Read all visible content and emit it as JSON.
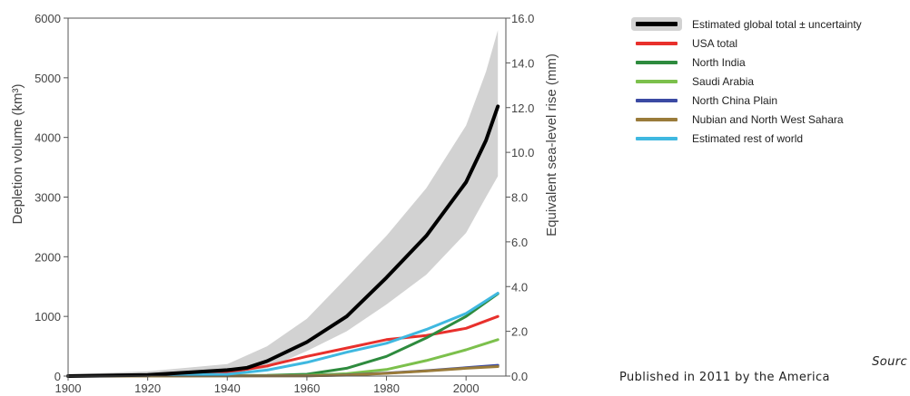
{
  "chart_data": {
    "type": "line",
    "ylabel": "Depletion volume (km³)",
    "y2label": "Equivalent sea-level rise (mm)",
    "xlim": [
      1900,
      2010
    ],
    "ylim": [
      0,
      6000
    ],
    "y2lim": [
      0,
      16.0
    ],
    "x_ticks": [
      1900,
      1920,
      1940,
      1960,
      1980,
      2000
    ],
    "y_ticks": [
      0,
      1000,
      2000,
      3000,
      4000,
      5000,
      6000
    ],
    "y2_ticks": [
      "0.0",
      "2.0",
      "4.0",
      "6.0",
      "8.0",
      "10.0",
      "12.0",
      "14.0",
      "16.0"
    ],
    "uncertainty_band": {
      "x": [
        1900,
        1920,
        1940,
        1950,
        1960,
        1970,
        1980,
        1990,
        2000,
        2005,
        2008
      ],
      "lower": [
        0,
        10,
        60,
        130,
        420,
        750,
        1200,
        1700,
        2400,
        3000,
        3350
      ],
      "upper": [
        30,
        80,
        200,
        500,
        960,
        1650,
        2350,
        3150,
        4200,
        5100,
        5800
      ]
    },
    "series": [
      {
        "name": "Estimated global total ± uncertainty",
        "color": "#000000",
        "x": [
          1900,
          1920,
          1940,
          1945,
          1950,
          1960,
          1970,
          1980,
          1990,
          2000,
          2005,
          2008
        ],
        "y": [
          0,
          20,
          100,
          140,
          250,
          570,
          1000,
          1650,
          2350,
          3250,
          3950,
          4520
        ]
      },
      {
        "name": "USA total",
        "color": "#e8302c",
        "x": [
          1900,
          1920,
          1940,
          1950,
          1960,
          1970,
          1980,
          1990,
          2000,
          2008
        ],
        "y": [
          0,
          10,
          60,
          170,
          330,
          470,
          610,
          680,
          800,
          1000
        ]
      },
      {
        "name": "North India",
        "color": "#2e8b3e",
        "x": [
          1900,
          1950,
          1960,
          1970,
          1980,
          1990,
          2000,
          2008
        ],
        "y": [
          0,
          10,
          30,
          130,
          330,
          640,
          1000,
          1380
        ]
      },
      {
        "name": "Saudi Arabia",
        "color": "#7cc04c",
        "x": [
          1900,
          1960,
          1970,
          1980,
          1990,
          2000,
          2008
        ],
        "y": [
          0,
          10,
          40,
          110,
          260,
          440,
          610
        ]
      },
      {
        "name": "North China Plain",
        "color": "#3b4aa3",
        "x": [
          1900,
          1960,
          1970,
          1980,
          1990,
          2000,
          2008
        ],
        "y": [
          0,
          5,
          20,
          50,
          90,
          140,
          180
        ]
      },
      {
        "name": "Nubian and North West Sahara",
        "color": "#9a7b3a",
        "x": [
          1900,
          1960,
          1970,
          1980,
          1990,
          2000,
          2008
        ],
        "y": [
          0,
          3,
          15,
          45,
          85,
          130,
          160
        ]
      },
      {
        "name": "Estimated rest of world",
        "color": "#3fb8e0",
        "x": [
          1900,
          1940,
          1950,
          1960,
          1970,
          1980,
          1990,
          2000,
          2008
        ],
        "y": [
          0,
          30,
          100,
          230,
          400,
          550,
          780,
          1050,
          1390
        ]
      }
    ],
    "legend_position": "top-right",
    "grid": false
  },
  "legend": {
    "band_color": "#d2d2d2",
    "items": [
      {
        "label": "Estimated global total ± uncertainty",
        "color": "#000000"
      },
      {
        "label": "USA total",
        "color": "#e8302c"
      },
      {
        "label": "North India",
        "color": "#2e8b3e"
      },
      {
        "label": "Saudi Arabia",
        "color": "#7cc04c"
      },
      {
        "label": "North China Plain",
        "color": "#3b4aa3"
      },
      {
        "label": "Nubian and North West Sahara",
        "color": "#9a7b3a"
      },
      {
        "label": "Estimated rest of world",
        "color": "#3fb8e0"
      }
    ]
  },
  "source": {
    "line1": "Sourc",
    "line2": "Published in 2011 by the America"
  }
}
